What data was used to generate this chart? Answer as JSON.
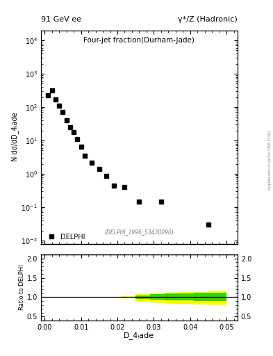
{
  "title_left": "91 GeV ee",
  "title_right": "γ*/Z (Hadronic)",
  "plot_title": "Four-jet fraction(Durham-Jade)",
  "ylabel_main": "N dσ/dD_4ⱼade",
  "ylabel_ratio": "Ratio to DELPHI",
  "xlabel": "D_4ⱼade",
  "right_label": "mcplots.cern.ch [arXiv:1306.3436]",
  "watermark": "(DELPHI_1996_S3430090)",
  "legend_label": "DELPHI",
  "data_x": [
    0.001,
    0.002,
    0.003,
    0.004,
    0.005,
    0.006,
    0.007,
    0.008,
    0.009,
    0.01,
    0.011,
    0.013,
    0.015,
    0.017,
    0.019,
    0.022,
    0.026,
    0.032,
    0.045
  ],
  "data_y": [
    230,
    310,
    170,
    110,
    70,
    40,
    25,
    18,
    11,
    6.5,
    3.5,
    2.2,
    1.4,
    0.85,
    0.45,
    0.4,
    0.15,
    0.15,
    0.03
  ],
  "xlim": [
    -0.001,
    0.053
  ],
  "ylim_main": [
    0.008,
    20000
  ],
  "ylim_ratio": [
    0.4,
    2.1
  ],
  "ratio_x_edges": [
    0.0,
    0.003,
    0.006,
    0.009,
    0.012,
    0.015,
    0.018,
    0.021,
    0.025,
    0.029,
    0.033,
    0.037,
    0.041,
    0.045,
    0.05
  ],
  "ratio_green_upper": [
    1.0,
    1.0,
    1.0,
    1.001,
    1.002,
    1.004,
    1.006,
    1.01,
    1.04,
    1.07,
    1.09,
    1.1,
    1.11,
    1.12
  ],
  "ratio_green_lower": [
    1.0,
    1.0,
    1.0,
    0.999,
    0.998,
    0.996,
    0.994,
    0.99,
    0.96,
    0.94,
    0.92,
    0.91,
    0.9,
    0.89
  ],
  "ratio_yellow_upper": [
    1.0,
    1.0,
    1.001,
    1.003,
    1.006,
    1.01,
    1.015,
    1.03,
    1.07,
    1.1,
    1.12,
    1.13,
    1.14,
    1.15
  ],
  "ratio_yellow_lower": [
    1.0,
    1.0,
    0.999,
    0.997,
    0.994,
    0.99,
    0.985,
    0.97,
    0.88,
    0.85,
    0.83,
    0.82,
    0.81,
    0.8
  ],
  "marker_color": "black",
  "marker_style": "s",
  "marker_size": 4,
  "green_color": "#00cc00",
  "yellow_color": "#ffff00",
  "line_color": "black",
  "bg_color": "white",
  "tick_direction": "in"
}
